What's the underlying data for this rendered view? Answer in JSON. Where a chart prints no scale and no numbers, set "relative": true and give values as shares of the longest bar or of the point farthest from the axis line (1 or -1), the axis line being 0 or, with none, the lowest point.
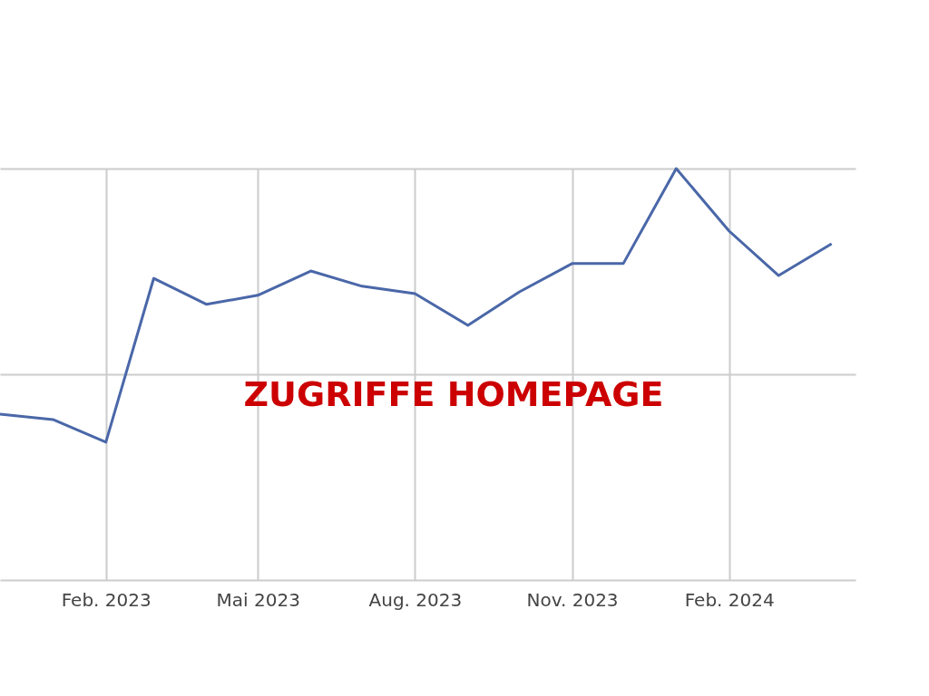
{
  "chart_data": {
    "type": "line",
    "title": "ZUGRIFFE HOMEPAGE",
    "relative": true,
    "x": [
      "2022-12",
      "2023-01",
      "2023-02",
      "2023-03",
      "2023-04",
      "2023-05",
      "2023-06",
      "2023-07",
      "2023-08",
      "2023-09",
      "2023-10",
      "2023-11",
      "2023-12",
      "2024-01",
      "2024-02",
      "2024-03",
      "2024-04"
    ],
    "series": [
      {
        "color": "#4a67a8",
        "values": [
          0.403,
          0.39,
          0.335,
          0.733,
          0.67,
          0.692,
          0.751,
          0.714,
          0.696,
          0.619,
          0.7,
          0.769,
          0.769,
          1.0,
          0.848,
          0.74,
          0.817
        ]
      }
    ],
    "xlim": [
      "2022-12-01",
      "2024-04-15"
    ],
    "xticks": [
      {
        "value": "2023-02",
        "label": "Feb. 2023"
      },
      {
        "value": "2023-05",
        "label": "Mai 2023"
      },
      {
        "value": "2023-08",
        "label": "Aug. 2023"
      },
      {
        "value": "2023-11",
        "label": "Nov. 2023"
      },
      {
        "value": "2024-02",
        "label": "Feb. 2024"
      }
    ],
    "grid": true,
    "marker": "none",
    "line_style": "solid"
  }
}
